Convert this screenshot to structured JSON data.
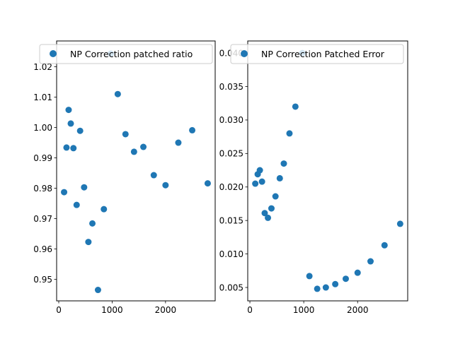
{
  "chart_data": [
    {
      "type": "scatter",
      "title": "",
      "xlabel": "",
      "ylabel": "",
      "xlim": [
        -40,
        2930
      ],
      "ylim": [
        0.9429,
        1.0285
      ],
      "xticks": [
        0,
        1000,
        2000
      ],
      "xtick_labels": [
        "0",
        "1000",
        "2000"
      ],
      "yticks": [
        0.95,
        0.96,
        0.97,
        0.98,
        0.99,
        1.0,
        1.01,
        1.02
      ],
      "ytick_labels": [
        "0.95",
        "0.96",
        "0.97",
        "0.98",
        "0.99",
        "1.00",
        "1.01",
        "1.02"
      ],
      "grid": false,
      "legend_position": "top-right",
      "series": [
        {
          "name": "NP Correction patched ratio",
          "color": "#1f77b4",
          "x": [
            100,
            145,
            185,
            225,
            275,
            335,
            400,
            475,
            555,
            630,
            735,
            845,
            975,
            1105,
            1250,
            1410,
            1585,
            1780,
            2000,
            2240,
            2500,
            2790
          ],
          "y": [
            0.9787,
            0.9934,
            1.0058,
            1.0013,
            0.9932,
            0.9745,
            0.9989,
            0.9803,
            0.9623,
            0.9684,
            0.9465,
            0.9731,
            1.0243,
            1.011,
            0.9978,
            0.992,
            0.9936,
            0.9843,
            0.981,
            0.995,
            0.9991,
            0.9816
          ]
        }
      ]
    },
    {
      "type": "scatter",
      "title": "",
      "xlabel": "",
      "ylabel": "",
      "xlim": [
        -40,
        2930
      ],
      "ylim": [
        0.003,
        0.0418
      ],
      "xticks": [
        0,
        1000,
        2000
      ],
      "xtick_labels": [
        "0",
        "1000",
        "2000"
      ],
      "yticks": [
        0.005,
        0.01,
        0.015,
        0.02,
        0.025,
        0.03,
        0.035,
        0.04
      ],
      "ytick_labels": [
        "0.005",
        "0.010",
        "0.015",
        "0.020",
        "0.025",
        "0.030",
        "0.035",
        "0.040"
      ],
      "grid": false,
      "legend_position": "top-right",
      "series": [
        {
          "name": "NP Correction Patched Error",
          "color": "#1f77b4",
          "x": [
            100,
            145,
            185,
            225,
            275,
            335,
            400,
            475,
            555,
            630,
            735,
            845,
            975,
            1105,
            1250,
            1410,
            1585,
            1780,
            2000,
            2240,
            2500,
            2790
          ],
          "y": [
            0.0205,
            0.0219,
            0.0225,
            0.0208,
            0.0161,
            0.0154,
            0.0168,
            0.0186,
            0.0213,
            0.0235,
            0.028,
            0.032,
            0.04,
            0.0067,
            0.0048,
            0.005,
            0.0055,
            0.0063,
            0.0072,
            0.0089,
            0.0113,
            0.0145
          ]
        }
      ]
    }
  ]
}
